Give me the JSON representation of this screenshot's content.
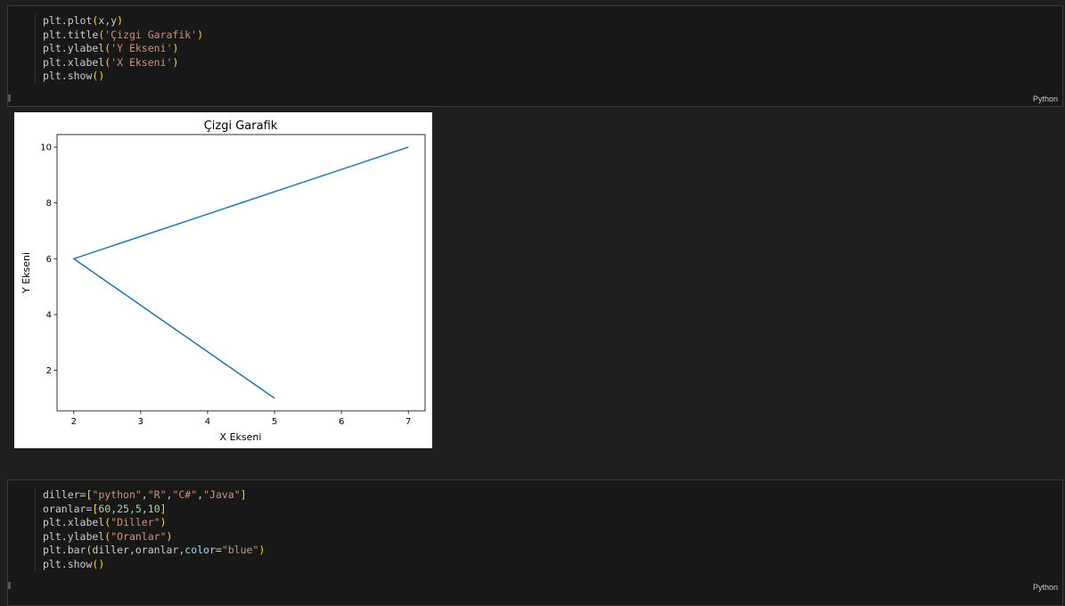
{
  "cells": [
    {
      "lang": "Python",
      "lines": [
        [
          [
            "plt.plot",
            ""
          ],
          [
            "(",
            "b"
          ],
          [
            "x,y",
            ""
          ],
          [
            ")",
            "b"
          ]
        ],
        [
          [
            "plt.title",
            ""
          ],
          [
            "(",
            "b"
          ],
          [
            "'Çizgi Garafik'",
            "s"
          ],
          [
            ")",
            "b"
          ]
        ],
        [
          [
            "plt.ylabel",
            ""
          ],
          [
            "(",
            "b"
          ],
          [
            "'Y Ekseni'",
            "s"
          ],
          [
            ")",
            "b"
          ]
        ],
        [
          [
            "plt.xlabel",
            ""
          ],
          [
            "(",
            "b"
          ],
          [
            "'X Ekseni'",
            "s"
          ],
          [
            ")",
            "b"
          ]
        ],
        [
          [
            "plt.show",
            ""
          ],
          [
            "()",
            "b"
          ]
        ]
      ]
    },
    {
      "lang": "Python",
      "lines": [
        [
          [
            "diller=",
            ""
          ],
          [
            "[",
            "b"
          ],
          [
            "\"python\"",
            "s"
          ],
          [
            ",",
            ""
          ],
          [
            "\"R\"",
            "s"
          ],
          [
            ",",
            ""
          ],
          [
            "\"C#\"",
            "s"
          ],
          [
            ",",
            ""
          ],
          [
            "\"Java\"",
            "s"
          ],
          [
            "]",
            "b"
          ]
        ],
        [
          [
            "oranlar=",
            ""
          ],
          [
            "[",
            "b"
          ],
          [
            "60",
            "n"
          ],
          [
            ",",
            ""
          ],
          [
            "25",
            "n"
          ],
          [
            ",",
            ""
          ],
          [
            "5",
            "n"
          ],
          [
            ",",
            ""
          ],
          [
            "10",
            "n"
          ],
          [
            "]",
            "b"
          ]
        ],
        [
          [
            "plt.xlabel",
            ""
          ],
          [
            "(",
            "b"
          ],
          [
            "\"Diller\"",
            "s"
          ],
          [
            ")",
            "b"
          ]
        ],
        [
          [
            "plt.ylabel",
            ""
          ],
          [
            "(",
            "b"
          ],
          [
            "\"Oranlar\"",
            "s"
          ],
          [
            ")",
            "b"
          ]
        ],
        [
          [
            "plt.bar",
            ""
          ],
          [
            "(",
            "b"
          ],
          [
            "diller,oranlar,",
            ""
          ],
          [
            "color",
            "v"
          ],
          [
            "=",
            ""
          ],
          [
            "\"blue\"",
            "s"
          ],
          [
            ")",
            "b"
          ]
        ],
        [
          [
            "plt.show",
            ""
          ],
          [
            "()",
            "b"
          ]
        ]
      ]
    }
  ],
  "chart_data": {
    "type": "line",
    "title": "Çizgi Garafik",
    "xlabel": "X Ekseni",
    "ylabel": "Y Ekseni",
    "x": [
      5,
      2,
      7
    ],
    "y": [
      1,
      6,
      10
    ],
    "xlim": [
      1.75,
      7.25
    ],
    "ylim": [
      0.55,
      10.45
    ],
    "xticks": [
      2,
      3,
      4,
      5,
      6,
      7
    ],
    "yticks": [
      2,
      4,
      6,
      8,
      10
    ],
    "color": "#1f77b4",
    "grid": false
  }
}
